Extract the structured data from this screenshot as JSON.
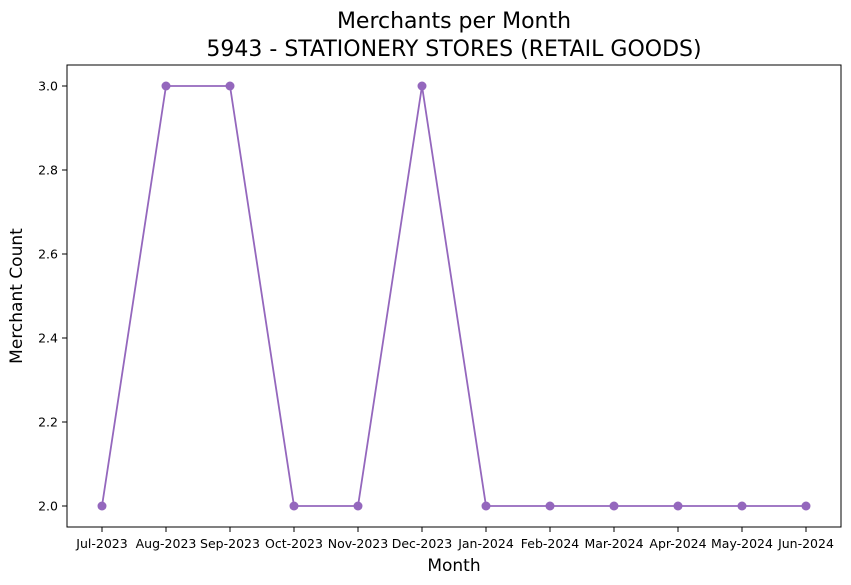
{
  "chart_data": {
    "type": "line",
    "title_line1": "Merchants per Month",
    "title_line2": "5943 - STATIONERY STORES (RETAIL GOODS)",
    "xlabel": "Month",
    "ylabel": "Merchant Count",
    "categories": [
      "Jul-2023",
      "Aug-2023",
      "Sep-2023",
      "Oct-2023",
      "Nov-2023",
      "Dec-2023",
      "Jan-2024",
      "Feb-2024",
      "Mar-2024",
      "Apr-2024",
      "May-2024",
      "Jun-2024"
    ],
    "series": [
      {
        "values": [
          2,
          3,
          3,
          2,
          2,
          3,
          2,
          2,
          2,
          2,
          2,
          2
        ]
      }
    ],
    "yticks": [
      "2.0",
      "2.2",
      "2.4",
      "2.6",
      "2.8",
      "3.0"
    ],
    "ytick_values": [
      2.0,
      2.2,
      2.4,
      2.6,
      2.8,
      3.0
    ],
    "ylim": [
      1.95,
      3.05
    ],
    "grid": false,
    "line_color": "#9467bd"
  }
}
